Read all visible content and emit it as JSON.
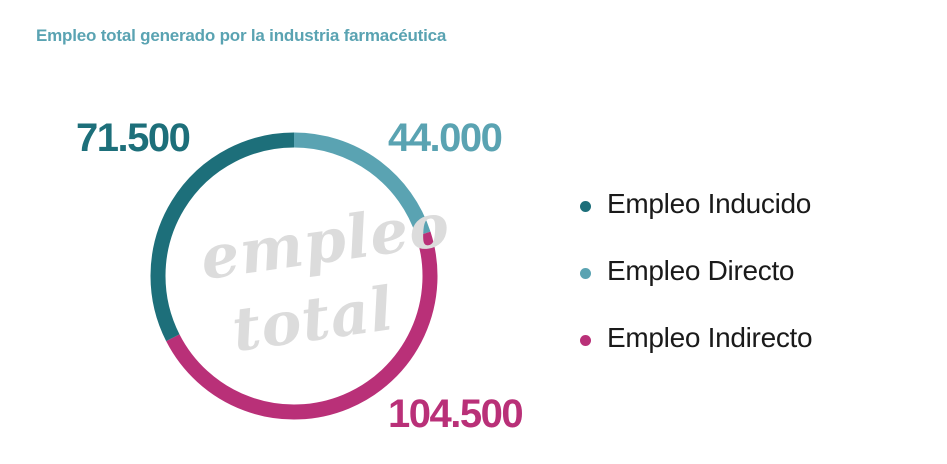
{
  "chart_data": {
    "type": "pie",
    "title": "Empleo total generado por la industria farmacéutica",
    "center_text": [
      "empleo",
      "total"
    ],
    "series": [
      {
        "name": "Empleo Inducido",
        "value": 71500,
        "value_label": "71.500",
        "color": "#1d6f7a"
      },
      {
        "name": "Empleo Directo",
        "value": 44000,
        "value_label": "44.000",
        "color": "#5aa3b2"
      },
      {
        "name": "Empleo Indirecto",
        "value": 104500,
        "value_label": "104.500",
        "color": "#b93078"
      }
    ],
    "legend_placement": "right"
  },
  "colors": {
    "title": "#5aa3b2",
    "center_text": "#dcdcdc"
  }
}
